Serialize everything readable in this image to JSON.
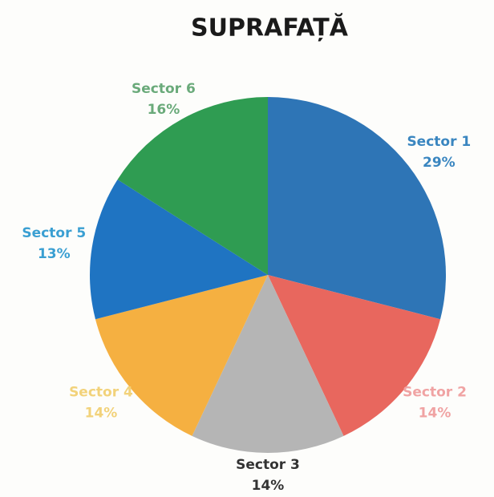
{
  "chart_data": {
    "type": "pie",
    "title": "SUPRAFAȚĂ",
    "categories": [
      "Sector 1",
      "Sector 2",
      "Sector 3",
      "Sector 4",
      "Sector 5",
      "Sector 6"
    ],
    "values": [
      29,
      14,
      14,
      14,
      13,
      16
    ],
    "value_labels": [
      "29%",
      "14%",
      "14%",
      "14%",
      "13%",
      "16%"
    ],
    "colors": [
      "#2e75b6",
      "#e8675e",
      "#b5b5b5",
      "#f5b041",
      "#1f74c2",
      "#2f9c52"
    ],
    "label_colors": [
      "#3a86c0",
      "#f0a3a3",
      "#333333",
      "#f2d27a",
      "#3a9fd2",
      "#6aaa7a"
    ]
  }
}
